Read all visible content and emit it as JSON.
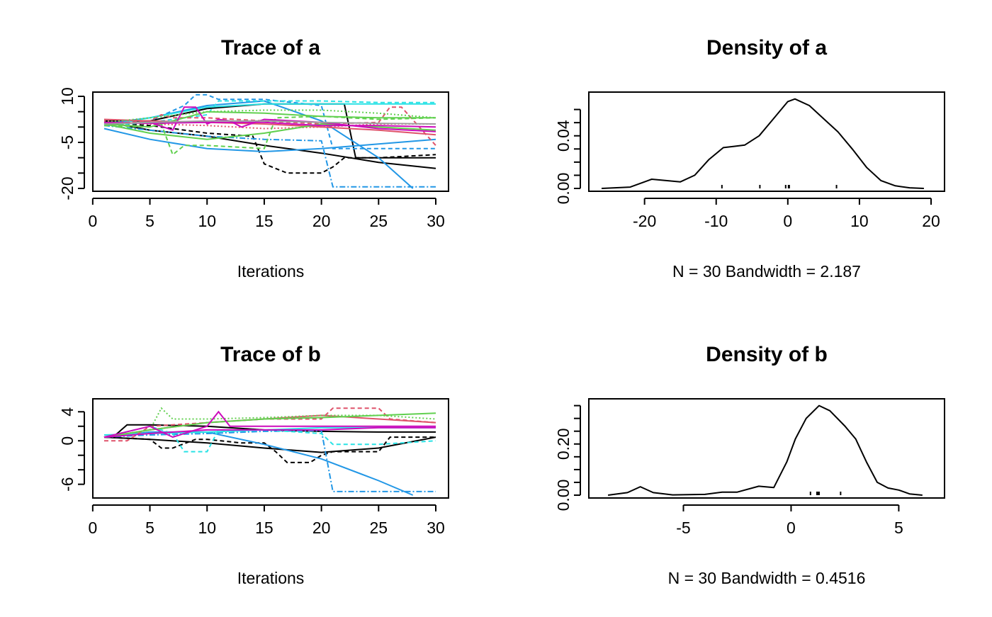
{
  "chart_data": [
    {
      "id": "trace-a",
      "type": "line",
      "title": "Trace of a",
      "xlabel": "Iterations",
      "ylabel": "",
      "xlim": [
        0,
        30
      ],
      "ylim": [
        -20,
        10
      ],
      "xticks": [
        0,
        5,
        10,
        15,
        20,
        25,
        30
      ],
      "yticks": [
        -20,
        -15,
        -10,
        -5,
        0,
        5,
        10
      ],
      "ytick_labels": [
        "-20",
        "",
        "",
        "-5",
        "",
        "",
        "10"
      ],
      "series": [
        {
          "color": "#000000",
          "dash": "none",
          "x": [
            1,
            5,
            10,
            15,
            20,
            25,
            30
          ],
          "y": [
            1.8,
            -1.0,
            -3.0,
            -6.0,
            -8.5,
            -11.5,
            -13.5
          ]
        },
        {
          "color": "#000000",
          "dash": "6,4",
          "x": [
            1,
            5,
            10,
            14,
            15,
            17,
            20,
            21,
            22,
            25,
            30
          ],
          "y": [
            1.5,
            0.5,
            -2.0,
            -3.0,
            -12.0,
            -15.0,
            -15.0,
            -13.0,
            -10.0,
            -10.0,
            -9.0
          ]
        },
        {
          "color": "#000000",
          "dash": "none",
          "x": [
            1,
            3,
            5,
            10,
            15,
            20,
            22,
            23,
            25,
            30
          ],
          "y": [
            2.0,
            2.0,
            2.0,
            6.0,
            7.5,
            7.5,
            7.5,
            -10.0,
            -10.0,
            -10.0
          ]
        },
        {
          "color": "#2297E6",
          "dash": "none",
          "x": [
            1,
            5,
            10,
            15,
            20,
            25,
            28
          ],
          "y": [
            1.0,
            3.0,
            7.0,
            8.5,
            2.0,
            -10.0,
            -20.0
          ]
        },
        {
          "color": "#2297E6",
          "dash": "8,3,2,3",
          "x": [
            1,
            5,
            10,
            15,
            20,
            21,
            25,
            30
          ],
          "y": [
            0.5,
            -1.0,
            -3.0,
            -4.0,
            -4.5,
            -19.5,
            -19.5,
            -19.5
          ]
        },
        {
          "color": "#2297E6",
          "dash": "6,4",
          "x": [
            1,
            5,
            8,
            9,
            10,
            11,
            15,
            20,
            21,
            25,
            30
          ],
          "y": [
            1.0,
            2.0,
            7.0,
            10.5,
            10.5,
            9.0,
            9.0,
            7.0,
            -7.0,
            -7.0,
            -7.0
          ]
        },
        {
          "color": "#2297E6",
          "dash": "none",
          "x": [
            1,
            5,
            10,
            15,
            20,
            25,
            30
          ],
          "y": [
            -0.5,
            -4.0,
            -7.0,
            -8.0,
            -7.0,
            -5.5,
            -4.0
          ]
        },
        {
          "color": "#28E2E5",
          "dash": "none",
          "x": [
            1,
            5,
            10,
            15,
            20,
            25,
            30
          ],
          "y": [
            0.5,
            3.0,
            6.5,
            7.5,
            7.5,
            7.5,
            7.5
          ]
        },
        {
          "color": "#28E2E5",
          "dash": "6,4",
          "x": [
            1,
            5,
            10,
            11,
            15,
            20,
            25,
            30
          ],
          "y": [
            0.5,
            1.5,
            4.0,
            8.5,
            8.5,
            8.5,
            8.0,
            8.0
          ]
        },
        {
          "color": "#DF536B",
          "dash": "none",
          "x": [
            1,
            5,
            10,
            15,
            20,
            25,
            30
          ],
          "y": [
            2.5,
            2.0,
            1.5,
            1.0,
            0.0,
            -1.0,
            -2.5
          ]
        },
        {
          "color": "#DF536B",
          "dash": "6,4",
          "x": [
            1,
            5,
            6,
            7,
            10,
            15,
            20,
            25,
            26,
            27,
            30
          ],
          "y": [
            1.0,
            2.0,
            4.0,
            3.0,
            3.0,
            2.0,
            1.0,
            1.5,
            6.5,
            6.5,
            -6.0
          ]
        },
        {
          "color": "#DF536B",
          "dash": "2,3",
          "x": [
            1,
            5,
            10,
            15,
            20,
            25,
            30
          ],
          "y": [
            2.0,
            1.0,
            0.5,
            -0.5,
            0.0,
            1.0,
            1.0
          ]
        },
        {
          "color": "#61D04F",
          "dash": "none",
          "x": [
            1,
            5,
            10,
            15,
            20,
            25,
            30
          ],
          "y": [
            1.0,
            0.0,
            5.0,
            4.5,
            3.5,
            3.0,
            3.0
          ]
        },
        {
          "color": "#61D04F",
          "dash": "6,4",
          "x": [
            1,
            5,
            6,
            7,
            8,
            10,
            15,
            16,
            20,
            25,
            30
          ],
          "y": [
            0.5,
            0.0,
            1.0,
            -9.0,
            -6.0,
            -6.0,
            -7.0,
            3.0,
            3.5,
            2.5,
            3.0
          ]
        },
        {
          "color": "#61D04F",
          "dash": "none",
          "x": [
            1,
            5,
            10,
            15,
            20,
            25,
            30
          ],
          "y": [
            1.0,
            -2.0,
            -4.0,
            -2.0,
            1.0,
            0.0,
            -1.0
          ]
        },
        {
          "color": "#61D04F",
          "dash": "2,3",
          "x": [
            1,
            5,
            10,
            15,
            20,
            25,
            30
          ],
          "y": [
            1.5,
            3.0,
            5.0,
            5.5,
            5.5,
            4.5,
            3.0
          ]
        },
        {
          "color": "#CD0BBC",
          "dash": "none",
          "x": [
            1,
            5,
            7,
            8,
            9,
            10,
            11,
            12,
            13,
            15,
            20,
            25,
            30
          ],
          "y": [
            1.0,
            1.5,
            -1.0,
            6.5,
            6.5,
            1.0,
            2.5,
            2.0,
            0.0,
            2.5,
            1.5,
            -0.5,
            -1.5
          ]
        },
        {
          "color": "#CD0BBC",
          "dash": "none",
          "x": [
            1,
            5,
            10,
            15,
            20,
            25,
            30
          ],
          "y": [
            1.5,
            1.2,
            1.5,
            1.5,
            0.5,
            0.5,
            0.0
          ]
        },
        {
          "color": "#9E9E9E",
          "dash": "none",
          "x": [
            1,
            5,
            10,
            15,
            20,
            25,
            30
          ],
          "y": [
            1.0,
            1.5,
            2.0,
            2.0,
            1.5,
            1.2,
            1.0
          ]
        }
      ]
    },
    {
      "id": "density-a",
      "type": "line",
      "title": "Density of a",
      "xlabel": "N = 30   Bandwidth = 2.187",
      "ylabel": "",
      "xlim": [
        -26,
        20
      ],
      "ylim": [
        0,
        0.07
      ],
      "xticks": [
        -20,
        -10,
        0,
        10,
        20
      ],
      "xtick_labels": [
        "-20",
        "-10",
        "0",
        "10",
        "20"
      ],
      "yticks": [
        0.0,
        0.01,
        0.02,
        0.03,
        0.04,
        0.05,
        0.06
      ],
      "ytick_labels": [
        "0.00",
        "",
        "",
        "",
        "0.04",
        "",
        ""
      ],
      "density": {
        "x": [
          -26,
          -22,
          -20,
          -19,
          -17,
          -15,
          -13,
          -11,
          -9,
          -7.5,
          -6,
          -4,
          -2,
          0,
          1,
          3,
          5,
          7,
          9,
          11,
          13,
          15,
          17,
          19
        ],
        "y": [
          0,
          0.001,
          0.005,
          0.007,
          0.006,
          0.005,
          0.01,
          0.022,
          0.031,
          0.032,
          0.033,
          0.04,
          0.053,
          0.066,
          0.068,
          0.063,
          0.053,
          0.043,
          0.03,
          0.016,
          0.006,
          0.002,
          0.0005,
          0
        ]
      },
      "rug": [
        -9.2,
        -3.9,
        -0.3,
        0.1,
        0.2,
        6.8
      ]
    },
    {
      "id": "trace-b",
      "type": "line",
      "title": "Trace of b",
      "xlabel": "Iterations",
      "ylabel": "",
      "xlim": [
        0,
        30
      ],
      "ylim": [
        -7.5,
        5.2
      ],
      "xticks": [
        0,
        5,
        10,
        15,
        20,
        25,
        30
      ],
      "yticks": [
        -6,
        -4,
        -2,
        0,
        2,
        4
      ],
      "ytick_labels": [
        "-6",
        "",
        "",
        "0",
        "",
        "4"
      ],
      "series": [
        {
          "color": "#000000",
          "dash": "none",
          "x": [
            1,
            5,
            10,
            15,
            20,
            25,
            30
          ],
          "y": [
            0.5,
            0.2,
            -0.3,
            -1.0,
            -1.6,
            -1.0,
            0.5
          ]
        },
        {
          "color": "#000000",
          "dash": "6,4",
          "x": [
            1,
            5,
            6,
            7,
            9,
            10,
            13,
            15,
            16,
            17,
            19,
            20,
            21,
            25,
            26,
            30
          ],
          "y": [
            0.5,
            0.2,
            -1.0,
            -1.0,
            0.2,
            0.2,
            -0.3,
            -0.3,
            -1.5,
            -3.0,
            -3.0,
            -2.0,
            -1.5,
            -1.5,
            0.5,
            0.5
          ]
        },
        {
          "color": "#000000",
          "dash": "none",
          "x": [
            1,
            2,
            3,
            5,
            10,
            15,
            20,
            25,
            30
          ],
          "y": [
            0.5,
            0.8,
            2.2,
            2.2,
            2.0,
            1.5,
            1.3,
            1.2,
            1.2
          ]
        },
        {
          "color": "#2297E6",
          "dash": "none",
          "x": [
            1,
            5,
            10,
            15,
            20,
            25,
            28
          ],
          "y": [
            0.5,
            1.2,
            1.2,
            -0.5,
            -2.5,
            -5.5,
            -7.5
          ]
        },
        {
          "color": "#2297E6",
          "dash": "8,3,2,3",
          "x": [
            1,
            5,
            10,
            15,
            20,
            21,
            25,
            30
          ],
          "y": [
            0.5,
            0.8,
            1.0,
            1.3,
            1.4,
            -7.0,
            -7.0,
            -7.0
          ]
        },
        {
          "color": "#28E2E5",
          "dash": "6,4",
          "x": [
            1,
            5,
            7,
            8,
            9,
            10,
            11,
            15,
            20,
            21,
            25,
            30
          ],
          "y": [
            0.5,
            2.0,
            1.0,
            -1.5,
            -1.5,
            -1.5,
            1.5,
            1.5,
            1.0,
            -0.5,
            -0.5,
            0.0
          ]
        },
        {
          "color": "#28E2E5",
          "dash": "none",
          "x": [
            1,
            5,
            10,
            15,
            20,
            25,
            30
          ],
          "y": [
            0.8,
            1.0,
            1.2,
            1.5,
            1.8,
            1.8,
            1.8
          ]
        },
        {
          "color": "#DF536B",
          "dash": "6,4",
          "x": [
            1,
            3,
            5,
            10,
            15,
            20,
            21,
            25,
            26,
            30
          ],
          "y": [
            0.0,
            0.0,
            2.0,
            2.5,
            3.0,
            3.0,
            4.5,
            4.5,
            3.0,
            2.5
          ]
        },
        {
          "color": "#DF536B",
          "dash": "none",
          "x": [
            1,
            5,
            10,
            15,
            20,
            25,
            30
          ],
          "y": [
            0.5,
            1.5,
            2.5,
            3.0,
            3.5,
            3.0,
            2.5
          ]
        },
        {
          "color": "#61D04F",
          "dash": "2,3",
          "x": [
            1,
            5,
            6,
            7,
            10,
            15,
            20,
            25,
            30
          ],
          "y": [
            0.5,
            1.5,
            4.5,
            3.0,
            3.0,
            3.2,
            3.5,
            3.5,
            3.0
          ]
        },
        {
          "color": "#61D04F",
          "dash": "none",
          "x": [
            1,
            5,
            10,
            15,
            20,
            25,
            30
          ],
          "y": [
            0.5,
            1.5,
            2.5,
            3.0,
            3.2,
            3.5,
            3.8
          ]
        },
        {
          "color": "#CD0BBC",
          "dash": "none",
          "x": [
            1,
            5,
            7,
            10,
            11,
            12,
            15,
            20,
            25,
            30
          ],
          "y": [
            0.5,
            2.0,
            0.5,
            2.0,
            4.0,
            2.0,
            2.0,
            2.0,
            2.0,
            2.0
          ]
        },
        {
          "color": "#CD0BBC",
          "dash": "none",
          "x": [
            1,
            5,
            10,
            15,
            20,
            25,
            30
          ],
          "y": [
            0.5,
            1.0,
            1.5,
            1.5,
            1.5,
            1.8,
            1.8
          ]
        }
      ]
    },
    {
      "id": "density-b",
      "type": "line",
      "title": "Density of b",
      "xlabel": "N = 30   Bandwidth = 0.4516",
      "ylabel": "",
      "xlim": [
        -8.8,
        6.5
      ],
      "ylim": [
        0,
        0.36
      ],
      "xticks": [
        -5,
        0,
        5
      ],
      "xtick_labels": [
        "-5",
        "0",
        "5"
      ],
      "yticks": [
        0.0,
        0.05,
        0.1,
        0.15,
        0.2,
        0.25,
        0.3,
        0.35
      ],
      "ytick_labels": [
        "0.00",
        "",
        "",
        "",
        "0.20",
        "",
        "",
        ""
      ],
      "density": {
        "x": [
          -8.5,
          -7.6,
          -7.0,
          -6.4,
          -5.5,
          -4.0,
          -3.2,
          -2.5,
          -1.5,
          -0.8,
          -0.2,
          0.2,
          0.7,
          1.3,
          1.8,
          2.5,
          3.0,
          3.5,
          4.0,
          4.5,
          5.0,
          5.5,
          6.1
        ],
        "y": [
          0,
          0.01,
          0.033,
          0.01,
          0.001,
          0.003,
          0.012,
          0.012,
          0.035,
          0.03,
          0.13,
          0.22,
          0.3,
          0.35,
          0.33,
          0.27,
          0.22,
          0.13,
          0.05,
          0.028,
          0.02,
          0.005,
          0
        ]
      },
      "rug": [
        0.9,
        1.2,
        1.25,
        1.3,
        2.3
      ]
    }
  ]
}
